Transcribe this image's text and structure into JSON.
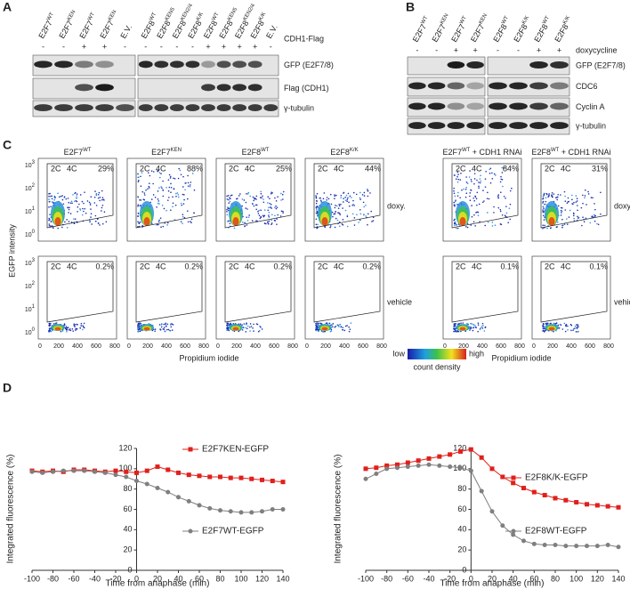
{
  "panel_a": {
    "label": "A",
    "treatment": "CDH1-Flag",
    "groups": [
      {
        "lanes": [
          {
            "base": "E2F7",
            "sup": "WT"
          },
          {
            "base": "E2F7",
            "sup": "KEN"
          },
          {
            "base": "E2F7",
            "sup": "WT"
          },
          {
            "base": "E2F7",
            "sup": "KEN"
          },
          {
            "base": "E.V."
          }
        ],
        "signs": [
          "-",
          "-",
          "+",
          "+",
          "-"
        ]
      },
      {
        "lanes": [
          {
            "base": "E2F8",
            "sup": "WT"
          },
          {
            "base": "E2F8",
            "sup": "KEN5"
          },
          {
            "base": "E2F8",
            "sup": "KEN2/4"
          },
          {
            "base": "E2F8",
            "sup": "K/K"
          },
          {
            "base": "E2F8",
            "sup": "WT"
          },
          {
            "base": "E2F8",
            "sup": "KEN5"
          },
          {
            "base": "E2F8",
            "sup": "KEN2/4"
          },
          {
            "base": "E2F8",
            "sup": "K/K"
          },
          {
            "base": "E.V."
          }
        ],
        "signs": [
          "-",
          "-",
          "-",
          "-",
          "+",
          "+",
          "+",
          "+",
          "-"
        ]
      }
    ],
    "rows": [
      "GFP (E2F7/8)",
      "Flag (CDH1)",
      "γ-tubulin"
    ]
  },
  "panel_b": {
    "label": "B",
    "treatment": "doxycycline",
    "groups": [
      {
        "lanes": [
          {
            "base": "E2F7",
            "sup": "WT"
          },
          {
            "base": "E2F7",
            "sup": "KEN"
          },
          {
            "base": "E2F7",
            "sup": "WT"
          },
          {
            "base": "E2F7",
            "sup": "KEN"
          }
        ],
        "signs": [
          "-",
          "-",
          "+",
          "+"
        ]
      },
      {
        "lanes": [
          {
            "base": "E2F8",
            "sup": "WT"
          },
          {
            "base": "E2F8",
            "sup": "K/K"
          },
          {
            "base": "E2F8",
            "sup": "WT"
          },
          {
            "base": "E2F8",
            "sup": "K/K"
          }
        ],
        "signs": [
          "-",
          "-",
          "+",
          "+"
        ]
      }
    ],
    "rows": [
      "GFP (E2F7/8)",
      "CDC6",
      "Cyclin A",
      "γ-tubulin"
    ]
  },
  "panel_c": {
    "label": "C",
    "titles": [
      {
        "base": "E2F7",
        "sup": "WT"
      },
      {
        "base": "E2F7",
        "sup": "KEN"
      },
      {
        "base": "E2F8",
        "sup": "WT"
      },
      {
        "base": "E2F8",
        "sup": "K/K"
      },
      {
        "base": "E2F7",
        "sup": "WT",
        "rest": " + CDH1 RNAi"
      },
      {
        "base": "E2F8",
        "sup": "WT",
        "rest": " + CDH1 RNAi"
      }
    ],
    "top_pct": [
      "29%",
      "88%",
      "25%",
      "44%",
      "84%",
      "31%"
    ],
    "bottom_pct": [
      "0.2%",
      "0.2%",
      "0.2%",
      "0.2%",
      "0.1%",
      "0.1%"
    ],
    "gate_labels": [
      "2C",
      "4C"
    ],
    "row_labels": [
      "doxy.",
      "vehicle"
    ],
    "ylabel": "EGFP intensity",
    "xlabel": "Propidium iodide",
    "yticks": [
      {
        "base": "10",
        "sup": "3"
      },
      {
        "base": "10",
        "sup": "2"
      },
      {
        "base": "10",
        "sup": "1"
      },
      {
        "base": "10",
        "sup": "0"
      }
    ],
    "xticks": [
      0,
      200,
      400,
      600,
      800
    ],
    "colorbar": {
      "low": "low",
      "high": "high",
      "label": "count density"
    }
  },
  "panel_d": {
    "label": "D"
  },
  "chart_data": [
    {
      "type": "line",
      "xlabel": "Time from anaphase (min)",
      "ylabel": "Integrated fluorescence (%)",
      "x": [
        -100,
        -90,
        -80,
        -70,
        -60,
        -50,
        -40,
        -30,
        -20,
        -10,
        0,
        10,
        20,
        30,
        40,
        50,
        60,
        70,
        80,
        90,
        100,
        110,
        120,
        130,
        140
      ],
      "series": [
        {
          "name": "E2F7KEN-EGFP",
          "color": "#e0201b",
          "marker": "square",
          "values": [
            98,
            97,
            98,
            97,
            99,
            99,
            98,
            97,
            98,
            97,
            96,
            98,
            102,
            99,
            96,
            94,
            93,
            92,
            92,
            91,
            91,
            90,
            89,
            88,
            87
          ]
        },
        {
          "name": "E2F7WT-EGFP",
          "color": "#7f7f7f",
          "marker": "circle",
          "values": [
            97,
            96,
            97,
            98,
            98,
            98,
            97,
            96,
            94,
            92,
            88,
            85,
            81,
            77,
            72,
            68,
            64,
            61,
            59,
            58,
            57,
            57,
            58,
            60,
            60
          ]
        }
      ],
      "xlim": [
        -100,
        140
      ],
      "ylim": [
        0,
        120
      ],
      "xticks": [
        -100,
        -80,
        -60,
        -40,
        -20,
        0,
        20,
        40,
        60,
        80,
        100,
        120,
        140
      ],
      "yticks": [
        0,
        20,
        40,
        60,
        80,
        100,
        120
      ]
    },
    {
      "type": "line",
      "xlabel": "Time from anaphase (min)",
      "ylabel": "Integrated fluorescence (%)",
      "x": [
        -100,
        -90,
        -80,
        -70,
        -60,
        -50,
        -40,
        -30,
        -20,
        -10,
        0,
        10,
        20,
        30,
        40,
        50,
        60,
        70,
        80,
        90,
        100,
        110,
        120,
        130,
        140
      ],
      "series": [
        {
          "name": "E2F8K/K-EGFP",
          "color": "#e0201b",
          "marker": "square",
          "values": [
            100,
            101,
            103,
            104,
            106,
            108,
            110,
            112,
            114,
            117,
            119,
            111,
            100,
            92,
            86,
            81,
            77,
            74,
            71,
            69,
            67,
            65,
            64,
            63,
            62
          ]
        },
        {
          "name": "E2F8WT-EGFP",
          "color": "#7f7f7f",
          "marker": "circle",
          "values": [
            90,
            95,
            100,
            101,
            102,
            103,
            104,
            103,
            102,
            101,
            98,
            78,
            58,
            44,
            35,
            29,
            26,
            25,
            25,
            24,
            24,
            24,
            24,
            25,
            23
          ]
        }
      ],
      "xlim": [
        -100,
        140
      ],
      "ylim": [
        0,
        120
      ],
      "xticks": [
        -100,
        -80,
        -60,
        -40,
        -20,
        0,
        20,
        40,
        60,
        80,
        100,
        120,
        140
      ],
      "yticks": [
        0,
        20,
        40,
        60,
        80,
        100,
        120
      ]
    }
  ]
}
